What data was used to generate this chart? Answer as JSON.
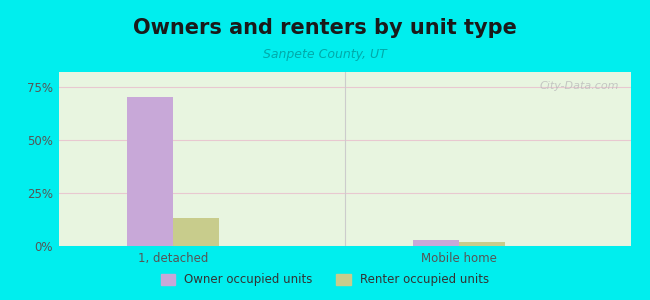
{
  "title": "Owners and renters by unit type",
  "subtitle": "Sanpete County, UT",
  "categories": [
    "1, detached",
    "Mobile home"
  ],
  "owner_values": [
    70,
    3
  ],
  "renter_values": [
    13,
    2
  ],
  "owner_color": "#c8a8d8",
  "renter_color": "#c8cc8c",
  "background_color": "#00eeee",
  "plot_bg_color": "#e8f5e0",
  "yticks": [
    0,
    25,
    50,
    75
  ],
  "yticklabels": [
    "0%",
    "25%",
    "50%",
    "75%"
  ],
  "ylim": [
    0,
    82
  ],
  "bar_width": 0.08,
  "group_positions": [
    0.2,
    0.7
  ],
  "legend_labels": [
    "Owner occupied units",
    "Renter occupied units"
  ],
  "grid_color": "#e8c8d0",
  "title_fontsize": 15,
  "subtitle_fontsize": 9,
  "tick_fontsize": 8.5,
  "watermark": "City-Data.com"
}
